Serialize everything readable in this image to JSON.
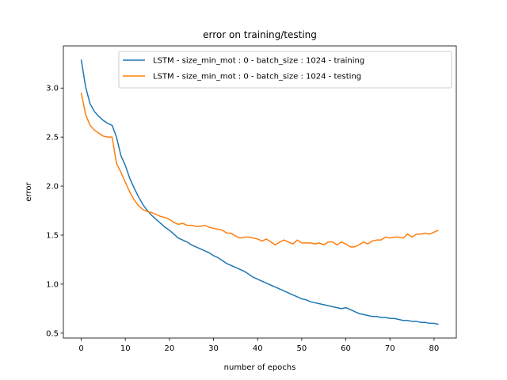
{
  "chart_data": {
    "type": "line",
    "title": "error on training/testing",
    "xlabel": "number of epochs",
    "ylabel": "error",
    "xlim": [
      -4.05,
      85.05
    ],
    "ylim": [
      0.45,
      3.43
    ],
    "xticks": [
      0,
      10,
      20,
      30,
      40,
      50,
      60,
      70,
      80
    ],
    "yticks": [
      0.5,
      1.0,
      1.5,
      2.0,
      2.5,
      3.0
    ],
    "grid": false,
    "legend_position": "top-right",
    "series": [
      {
        "name": "LSTM - size_min_mot : 0 - batch_size : 1024 - training",
        "color": "#1f77b4",
        "x": [
          0,
          1,
          2,
          3,
          4,
          5,
          6,
          7,
          8,
          9,
          10,
          11,
          12,
          13,
          14,
          15,
          16,
          17,
          18,
          19,
          20,
          21,
          22,
          23,
          24,
          25,
          26,
          27,
          28,
          29,
          30,
          31,
          32,
          33,
          34,
          35,
          36,
          37,
          38,
          39,
          40,
          41,
          42,
          43,
          44,
          45,
          46,
          47,
          48,
          49,
          50,
          51,
          52,
          53,
          54,
          55,
          56,
          57,
          58,
          59,
          60,
          61,
          62,
          63,
          64,
          65,
          66,
          67,
          68,
          69,
          70,
          71,
          72,
          73,
          74,
          75,
          76,
          77,
          78,
          79,
          80,
          81
        ],
        "values": [
          3.29,
          3.01,
          2.84,
          2.76,
          2.71,
          2.67,
          2.64,
          2.62,
          2.5,
          2.31,
          2.21,
          2.08,
          1.98,
          1.89,
          1.81,
          1.75,
          1.7,
          1.66,
          1.62,
          1.58,
          1.55,
          1.51,
          1.47,
          1.45,
          1.43,
          1.4,
          1.38,
          1.36,
          1.34,
          1.32,
          1.29,
          1.27,
          1.24,
          1.21,
          1.19,
          1.17,
          1.15,
          1.13,
          1.1,
          1.07,
          1.05,
          1.03,
          1.01,
          0.99,
          0.97,
          0.95,
          0.93,
          0.91,
          0.89,
          0.87,
          0.85,
          0.84,
          0.82,
          0.81,
          0.8,
          0.79,
          0.78,
          0.77,
          0.76,
          0.75,
          0.76,
          0.74,
          0.72,
          0.7,
          0.69,
          0.68,
          0.67,
          0.67,
          0.66,
          0.66,
          0.65,
          0.65,
          0.64,
          0.63,
          0.63,
          0.62,
          0.62,
          0.61,
          0.61,
          0.6,
          0.6,
          0.59
        ]
      },
      {
        "name": "LSTM - size_min_mot : 0 - batch_size : 1024 - testing",
        "color": "#ff7f0e",
        "x": [
          0,
          1,
          2,
          3,
          4,
          5,
          6,
          7,
          8,
          9,
          10,
          11,
          12,
          13,
          14,
          15,
          16,
          17,
          18,
          19,
          20,
          21,
          22,
          23,
          24,
          25,
          26,
          27,
          28,
          29,
          30,
          31,
          32,
          33,
          34,
          35,
          36,
          37,
          38,
          39,
          40,
          41,
          42,
          43,
          44,
          45,
          46,
          47,
          48,
          49,
          50,
          51,
          52,
          53,
          54,
          55,
          56,
          57,
          58,
          59,
          60,
          61,
          62,
          63,
          64,
          65,
          66,
          67,
          68,
          69,
          70,
          71,
          72,
          73,
          74,
          75,
          76,
          77,
          78,
          79,
          80,
          81
        ],
        "values": [
          2.95,
          2.73,
          2.62,
          2.57,
          2.54,
          2.51,
          2.5,
          2.5,
          2.23,
          2.14,
          2.04,
          1.94,
          1.86,
          1.8,
          1.76,
          1.74,
          1.73,
          1.71,
          1.69,
          1.68,
          1.66,
          1.63,
          1.61,
          1.62,
          1.6,
          1.6,
          1.59,
          1.59,
          1.6,
          1.58,
          1.57,
          1.56,
          1.55,
          1.52,
          1.52,
          1.49,
          1.47,
          1.48,
          1.48,
          1.47,
          1.46,
          1.44,
          1.46,
          1.43,
          1.4,
          1.43,
          1.45,
          1.43,
          1.41,
          1.45,
          1.42,
          1.42,
          1.42,
          1.41,
          1.42,
          1.4,
          1.43,
          1.43,
          1.4,
          1.43,
          1.41,
          1.38,
          1.38,
          1.4,
          1.43,
          1.41,
          1.44,
          1.45,
          1.45,
          1.48,
          1.47,
          1.48,
          1.48,
          1.47,
          1.51,
          1.48,
          1.51,
          1.51,
          1.52,
          1.51,
          1.53,
          1.55
        ]
      }
    ]
  }
}
